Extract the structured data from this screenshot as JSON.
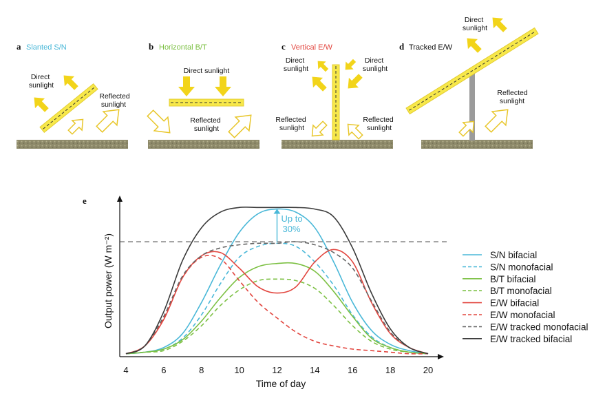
{
  "colors": {
    "sn": "#4ab8d8",
    "bt": "#7cc043",
    "ew": "#e2463f",
    "tracked": "#3a3a3a",
    "tracked_mono": "#666666",
    "panel_fill": "#f7e84a",
    "arrow_fill": "#f2d41a",
    "arrow_outline": "#e8c62a",
    "ground": "#8e8a6a",
    "pole": "#9b9b9b",
    "annotation": "#4ab8d8"
  },
  "panels": [
    {
      "letter": "a",
      "title": "Slanted S/N",
      "title_color": "#4ab8d8",
      "direct": [
        "Direct",
        "sunlight"
      ],
      "reflected": [
        "Reflected",
        "sunlight"
      ]
    },
    {
      "letter": "b",
      "title": "Horizontal B/T",
      "title_color": "#7cc043",
      "direct": [
        "Direct sunlight"
      ],
      "reflected": [
        "Reflected",
        "sunlight"
      ]
    },
    {
      "letter": "c",
      "title": "Vertical E/W",
      "title_color": "#e2463f",
      "direct_left": [
        "Direct",
        "sunlight"
      ],
      "direct_right": [
        "Direct",
        "sunlight"
      ],
      "reflected_left": [
        "Reflected",
        "sunlight"
      ],
      "reflected_right": [
        "Reflected",
        "sunlight"
      ]
    },
    {
      "letter": "d",
      "title": "Tracked E/W",
      "title_color": "#111111",
      "direct": [
        "Direct",
        "sunlight"
      ],
      "reflected": [
        "Reflected",
        "sunlight"
      ]
    }
  ],
  "chart_data": {
    "type": "line",
    "panel_letter": "e",
    "xlabel": "Time of day",
    "ylabel": "Output power (W m⁻²)",
    "xlim": [
      4,
      20
    ],
    "ylim": [
      0,
      100
    ],
    "xticks": [
      4,
      6,
      8,
      10,
      12,
      14,
      16,
      18,
      20
    ],
    "y_tick_labels": false,
    "grid": false,
    "legend_position": "right",
    "reference_line": {
      "y": 73,
      "style": "dashed"
    },
    "annotation": {
      "text": [
        "Up to",
        "30%"
      ],
      "x": 12,
      "from_y": 73,
      "to_y": 94
    },
    "series": [
      {
        "name": "S/N bifacial",
        "color": "#4ab8d8",
        "dash": "solid",
        "points": [
          [
            4,
            1
          ],
          [
            5,
            2
          ],
          [
            6,
            5
          ],
          [
            7,
            14
          ],
          [
            8,
            34
          ],
          [
            9,
            58
          ],
          [
            10,
            79
          ],
          [
            11,
            91
          ],
          [
            12,
            94
          ],
          [
            13,
            92
          ],
          [
            14,
            82
          ],
          [
            15,
            60
          ],
          [
            16,
            34
          ],
          [
            17,
            16
          ],
          [
            18,
            7
          ],
          [
            19,
            3
          ],
          [
            20,
            1
          ]
        ]
      },
      {
        "name": "S/N monofacial",
        "color": "#4ab8d8",
        "dash": "dashed",
        "points": [
          [
            4,
            1
          ],
          [
            5,
            2
          ],
          [
            6,
            4
          ],
          [
            7,
            11
          ],
          [
            8,
            26
          ],
          [
            9,
            46
          ],
          [
            10,
            63
          ],
          [
            11,
            70
          ],
          [
            12,
            72
          ],
          [
            13,
            70
          ],
          [
            14,
            60
          ],
          [
            15,
            45
          ],
          [
            16,
            26
          ],
          [
            17,
            12
          ],
          [
            18,
            5
          ],
          [
            19,
            2
          ],
          [
            20,
            1
          ]
        ]
      },
      {
        "name": "B/T bifacial",
        "color": "#7cc043",
        "dash": "solid",
        "points": [
          [
            4,
            1
          ],
          [
            5,
            2
          ],
          [
            6,
            4
          ],
          [
            7,
            10
          ],
          [
            8,
            22
          ],
          [
            9,
            37
          ],
          [
            10,
            50
          ],
          [
            11,
            57
          ],
          [
            12,
            59
          ],
          [
            13,
            59
          ],
          [
            14,
            54
          ],
          [
            15,
            41
          ],
          [
            16,
            25
          ],
          [
            17,
            11
          ],
          [
            18,
            5
          ],
          [
            19,
            2
          ],
          [
            20,
            1
          ]
        ]
      },
      {
        "name": "B/T monofacial",
        "color": "#7cc043",
        "dash": "dashed",
        "points": [
          [
            4,
            1
          ],
          [
            5,
            2
          ],
          [
            6,
            3
          ],
          [
            7,
            9
          ],
          [
            8,
            19
          ],
          [
            9,
            32
          ],
          [
            10,
            42
          ],
          [
            11,
            48
          ],
          [
            12,
            49
          ],
          [
            13,
            48
          ],
          [
            14,
            43
          ],
          [
            15,
            32
          ],
          [
            16,
            19
          ],
          [
            17,
            9
          ],
          [
            18,
            4
          ],
          [
            19,
            2
          ],
          [
            20,
            1
          ]
        ]
      },
      {
        "name": "E/W bifacial",
        "color": "#e2463f",
        "dash": "solid",
        "points": [
          [
            4,
            1
          ],
          [
            5,
            6
          ],
          [
            6,
            23
          ],
          [
            7,
            50
          ],
          [
            8,
            64
          ],
          [
            9,
            66
          ],
          [
            10,
            56
          ],
          [
            11,
            44
          ],
          [
            12,
            40
          ],
          [
            13,
            44
          ],
          [
            14,
            60
          ],
          [
            15,
            68
          ],
          [
            16,
            60
          ],
          [
            17,
            34
          ],
          [
            18,
            14
          ],
          [
            19,
            5
          ],
          [
            20,
            1
          ]
        ]
      },
      {
        "name": "E/W monofacial",
        "color": "#e2463f",
        "dash": "dashed",
        "points": [
          [
            4,
            1
          ],
          [
            5,
            6
          ],
          [
            6,
            24
          ],
          [
            7,
            50
          ],
          [
            8,
            63
          ],
          [
            9,
            62
          ],
          [
            10,
            48
          ],
          [
            11,
            34
          ],
          [
            12,
            24
          ],
          [
            13,
            15
          ],
          [
            14,
            9
          ],
          [
            15,
            6
          ],
          [
            16,
            4
          ],
          [
            17,
            3
          ],
          [
            18,
            2
          ],
          [
            19,
            1
          ],
          [
            20,
            1
          ]
        ]
      },
      {
        "name": "E/W tracked monofacial",
        "color": "#666666",
        "dash": "dashed",
        "points": [
          [
            4,
            1
          ],
          [
            5,
            6
          ],
          [
            6,
            25
          ],
          [
            7,
            51
          ],
          [
            8,
            64
          ],
          [
            9,
            69
          ],
          [
            10,
            71
          ],
          [
            11,
            72
          ],
          [
            12,
            72
          ],
          [
            13,
            73
          ],
          [
            14,
            71
          ],
          [
            15,
            66
          ],
          [
            16,
            56
          ],
          [
            17,
            35
          ],
          [
            18,
            15
          ],
          [
            19,
            5
          ],
          [
            20,
            1
          ]
        ]
      },
      {
        "name": "E/W tracked bifacial",
        "color": "#3a3a3a",
        "dash": "solid",
        "points": [
          [
            4,
            1
          ],
          [
            5,
            6
          ],
          [
            6,
            28
          ],
          [
            7,
            61
          ],
          [
            8,
            82
          ],
          [
            9,
            92
          ],
          [
            10,
            95
          ],
          [
            11,
            95
          ],
          [
            12,
            95
          ],
          [
            13,
            95
          ],
          [
            14,
            94
          ],
          [
            15,
            89
          ],
          [
            16,
            69
          ],
          [
            17,
            40
          ],
          [
            18,
            17
          ],
          [
            19,
            5
          ],
          [
            20,
            1
          ]
        ]
      }
    ]
  }
}
